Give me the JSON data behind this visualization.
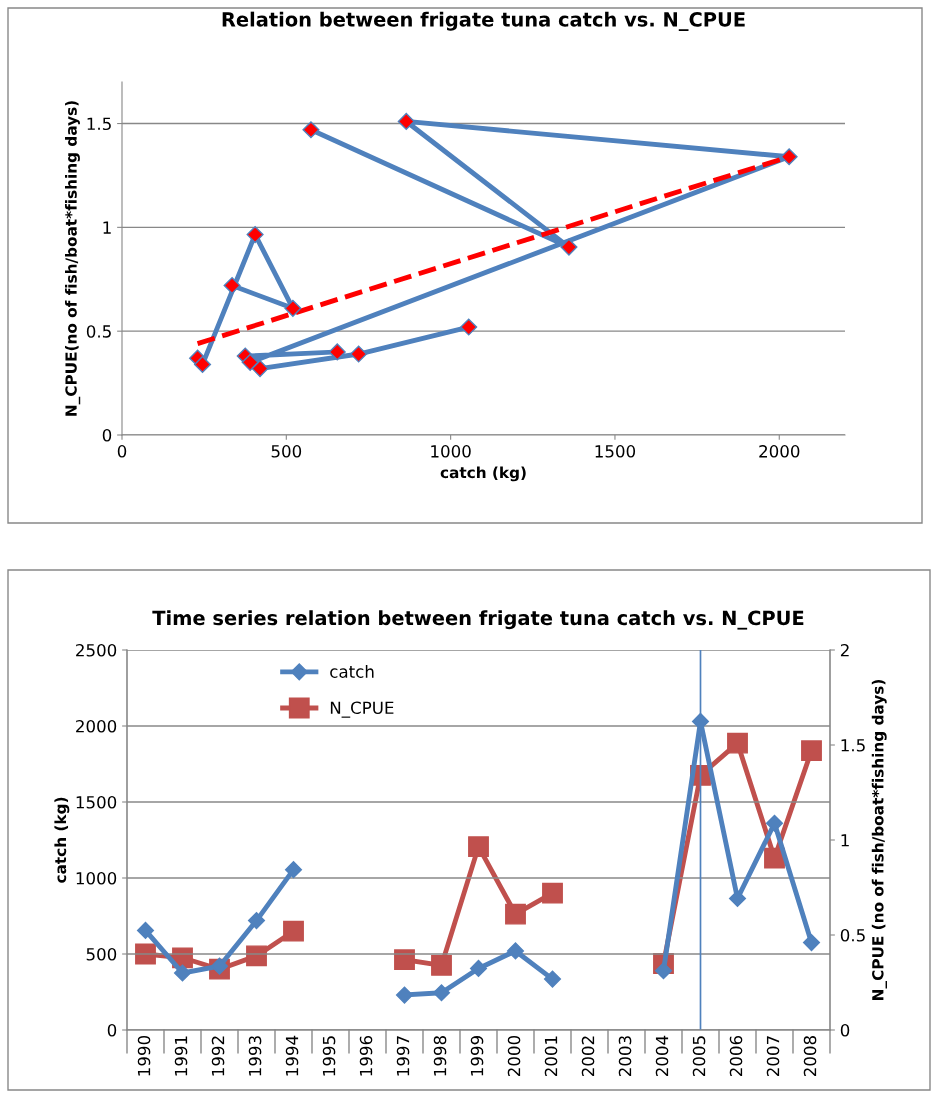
{
  "chart_data": [
    {
      "type": "line",
      "title": "Relation between frigate tuna catch vs. N_CPUE",
      "xlabel": "catch (kg)",
      "ylabel": "N_CPUE(no of fish/boat*fishing days)",
      "xlim": [
        0,
        2200
      ],
      "xticks": [
        0,
        500,
        1000,
        1500,
        2000
      ],
      "ylim": [
        0,
        1.7
      ],
      "yticks": [
        0,
        0.5,
        1,
        1.5
      ],
      "grid": "y",
      "legend": false,
      "series": [
        {
          "type": "line",
          "color": "#4f81bd",
          "marker": "diamond",
          "line_style": "solid",
          "colors": [
            "#ff0000",
            "#ff0000",
            "#ff0000",
            "#ff0000",
            "#ff0000",
            null,
            "#ff0000",
            "#ff0000",
            "#ff0000",
            "#ff0000",
            "#ff0000",
            null,
            "#ff0000",
            "#ff0000",
            "#ff0000",
            "#ff0000",
            "#ff0000"
          ],
          "x": [
            655,
            375,
            420,
            720,
            1055,
            null,
            230,
            245,
            405,
            520,
            335,
            null,
            390,
            2030,
            865,
            1360,
            575
          ],
          "values": [
            0.4,
            0.38,
            0.32,
            0.39,
            0.52,
            null,
            0.37,
            0.34,
            0.965,
            0.61,
            0.72,
            null,
            0.35,
            1.34,
            1.51,
            0.905,
            1.47
          ]
        },
        {
          "type": "line",
          "color": "#ff0000",
          "marker": "none",
          "line_style": "dashed",
          "x": [
            230,
            2030
          ],
          "values": [
            0.44,
            1.34
          ]
        }
      ]
    },
    {
      "type": "line",
      "title": "Time series relation between frigate tuna catch vs. N_CPUE",
      "ylabel": "catch (kg)",
      "y2label": "N_CPUE (no of fish/boat*fishing days)",
      "categories": [
        "1990",
        "1991",
        "1992",
        "1993",
        "1994",
        "1995",
        "1996",
        "1997",
        "1998",
        "1999",
        "2000",
        "2001",
        "2002",
        "2003",
        "2004",
        "2005",
        "2006",
        "2007",
        "2008"
      ],
      "ylim": [
        0,
        2500
      ],
      "yticks": [
        0,
        500,
        1000,
        1500,
        2000,
        2500
      ],
      "y2lim": [
        0,
        2
      ],
      "y2ticks": [
        0,
        0.5,
        1,
        1.5,
        2
      ],
      "grid": "y",
      "legend": "top left",
      "ref_lines": [
        {
          "axis": "x",
          "value": "2005",
          "color": "#4f81bd",
          "line_style": "solid"
        }
      ],
      "series": [
        {
          "name": "catch",
          "color": "#4f81bd",
          "marker": "diamond",
          "values": [
            655,
            375,
            420,
            720,
            1055,
            null,
            null,
            230,
            245,
            405,
            520,
            335,
            null,
            null,
            390,
            2030,
            865,
            1360,
            575
          ]
        },
        {
          "name": "N_CPUE",
          "color": "#c0504d",
          "marker": "square",
          "axis": "y2",
          "values": [
            0.4,
            0.38,
            0.32,
            0.39,
            0.52,
            null,
            null,
            0.37,
            0.34,
            0.965,
            0.61,
            0.72,
            null,
            null,
            0.35,
            1.34,
            1.51,
            0.905,
            1.47
          ]
        }
      ]
    }
  ]
}
